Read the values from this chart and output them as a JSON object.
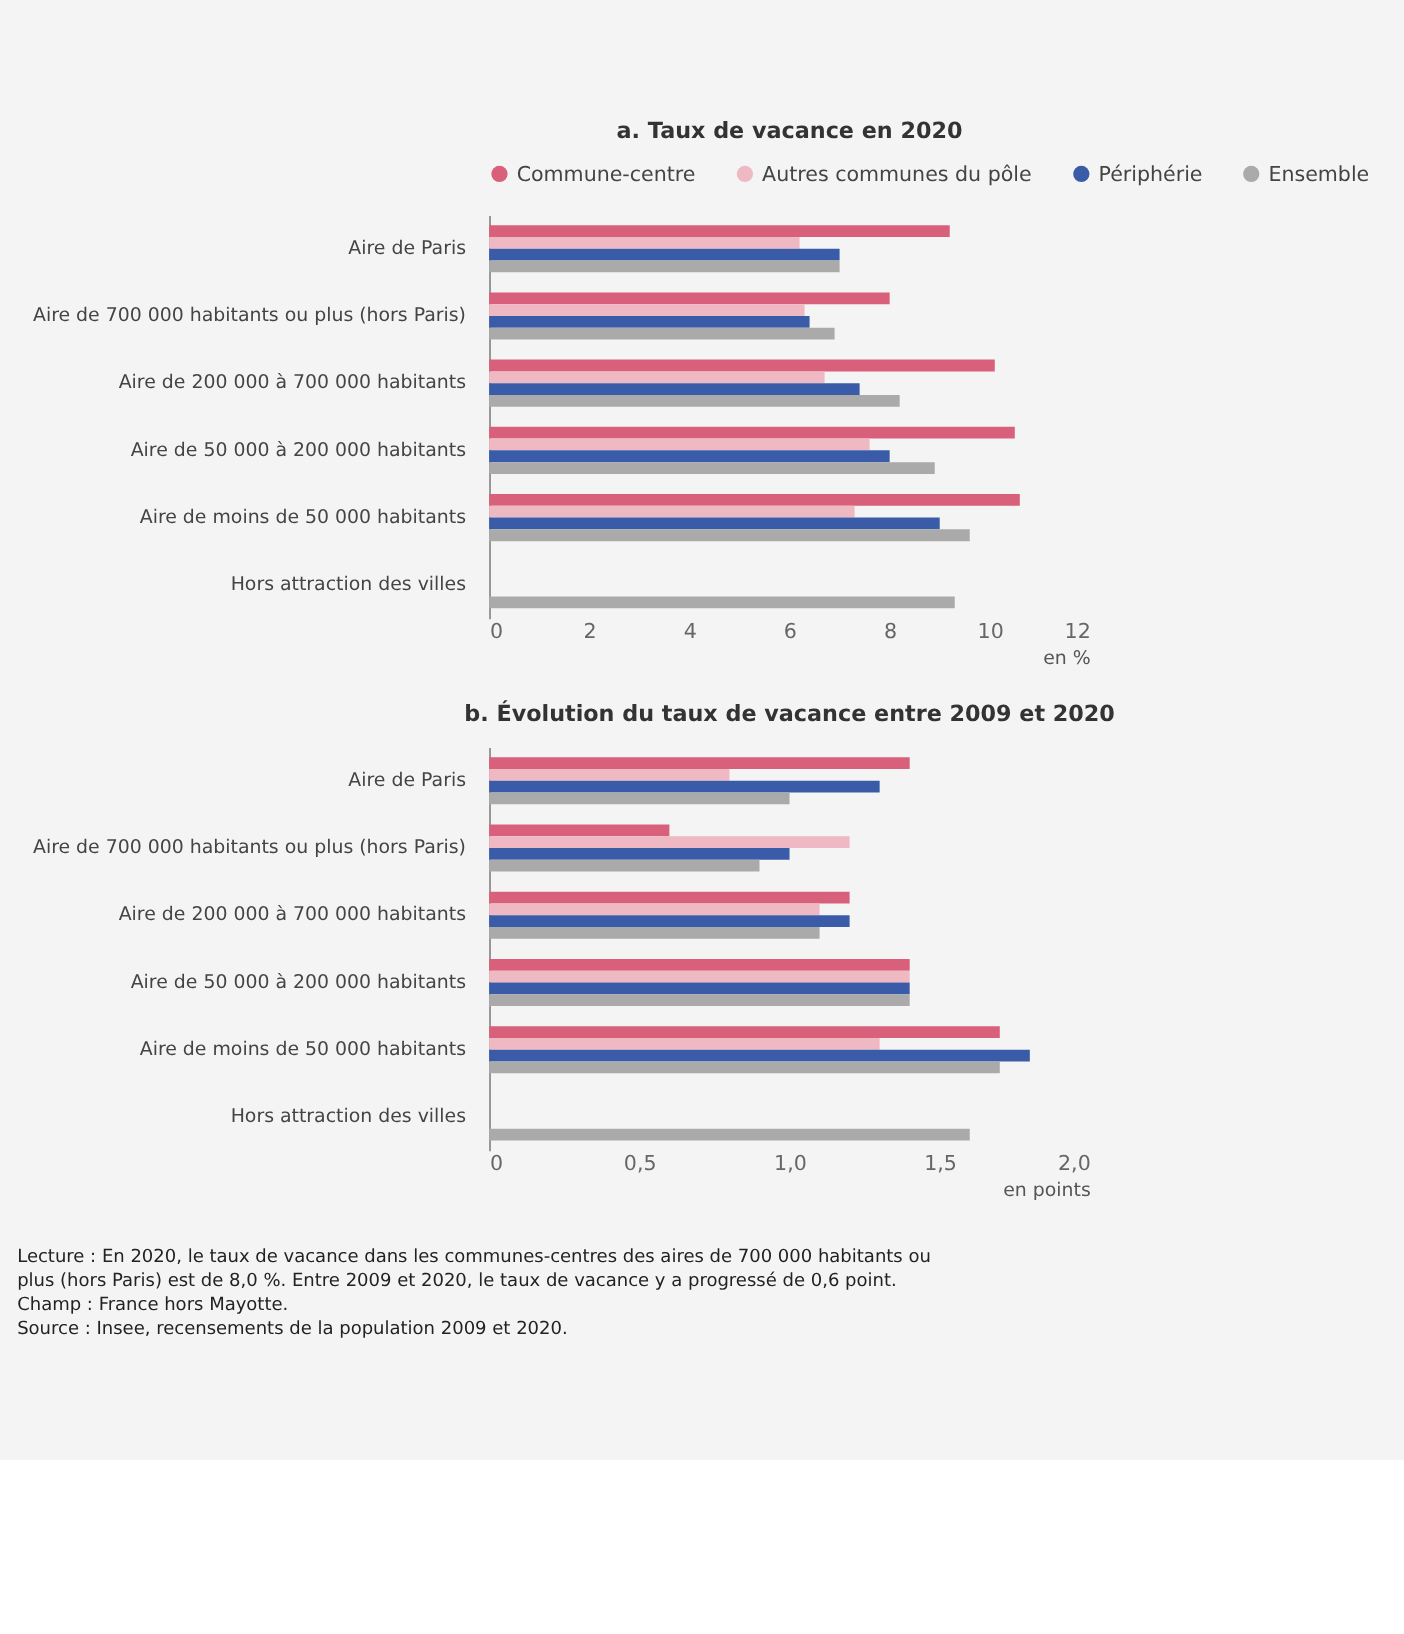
{
  "chart_data": [
    {
      "type": "bar",
      "orientation": "horizontal",
      "title": "a. Taux de vacance en 2020",
      "xlabel": "en %",
      "categories": [
        "Aire de Paris",
        "Aire de 700 000 habitants ou plus (hors Paris)",
        "Aire de 200 000 à 700 000 habitants",
        "Aire de 50 000 à 200 000 habitants",
        "Aire de moins de 50 000 habitants",
        "Hors attraction des villes"
      ],
      "series": [
        {
          "name": "Commune-centre",
          "color": "#d9607a",
          "values": [
            9.2,
            8.0,
            10.1,
            10.5,
            10.6,
            null
          ]
        },
        {
          "name": "Autres communes du pôle",
          "color": "#efb9c4",
          "values": [
            6.2,
            6.3,
            6.7,
            7.6,
            7.3,
            null
          ]
        },
        {
          "name": "Périphérie",
          "color": "#3a5ca8",
          "values": [
            7.0,
            6.4,
            7.4,
            8.0,
            9.0,
            null
          ]
        },
        {
          "name": "Ensemble",
          "color": "#aaaaaa",
          "values": [
            7.0,
            6.9,
            8.2,
            8.9,
            9.6,
            9.3
          ]
        }
      ],
      "xlim": [
        0,
        12
      ],
      "xticks": [
        0,
        2,
        4,
        6,
        8,
        10,
        12
      ],
      "grid": false,
      "legend": "top"
    },
    {
      "type": "bar",
      "orientation": "horizontal",
      "title": "b. Évolution du taux de vacance entre 2009 et 2020",
      "xlabel": "en points",
      "categories": [
        "Aire de Paris",
        "Aire de 700 000 habitants ou plus (hors Paris)",
        "Aire de 200 000 à 700 000 habitants",
        "Aire de 50 000 à 200 000 habitants",
        "Aire de moins de 50 000 habitants",
        "Hors attraction des villes"
      ],
      "series": [
        {
          "color": "#d9607a",
          "values": [
            1.4,
            0.6,
            1.2,
            1.4,
            1.7,
            null
          ]
        },
        {
          "color": "#efb9c4",
          "values": [
            0.8,
            1.2,
            1.1,
            1.4,
            1.3,
            null
          ]
        },
        {
          "color": "#3a5ca8",
          "values": [
            1.3,
            1.0,
            1.2,
            1.4,
            1.8,
            null
          ]
        },
        {
          "color": "#aaaaaa",
          "values": [
            1.0,
            0.9,
            1.1,
            1.4,
            1.7,
            1.6
          ]
        }
      ],
      "xlim": [
        0,
        2
      ],
      "xticks": [
        0,
        {
          "value": 0.5,
          "label": "0,5"
        },
        {
          "value": 1,
          "label": "1,0"
        },
        {
          "value": 1.5,
          "label": "1,5"
        },
        {
          "value": 2,
          "label": "2,0"
        }
      ],
      "grid": false,
      "legend": false,
      "annotations": [
        "Lecture : En 2020, le taux de vacance dans les communes-centres des aires de 700 000 habitants ou plus (hors Paris) est de 8,0 %. Entre 2009 et 2020, le taux de vacance y a progressé de 0,6 point.",
        "Champ : France hors Mayotte.",
        "Source : Insee, recensements de la population 2009 et 2020."
      ]
    }
  ]
}
